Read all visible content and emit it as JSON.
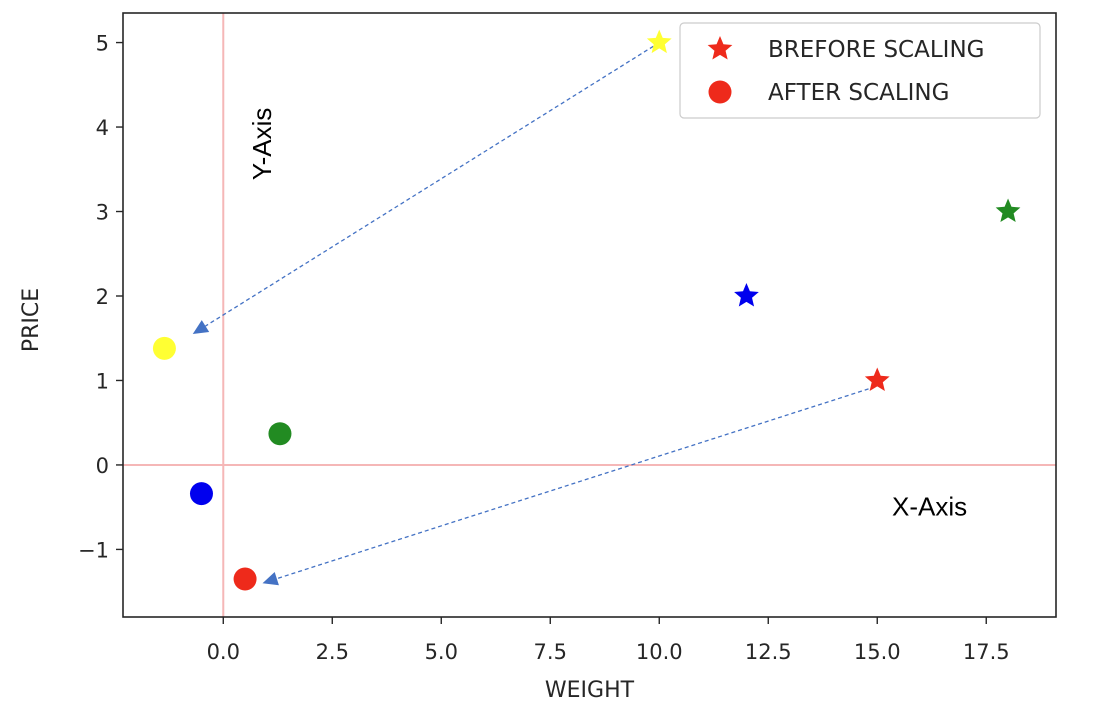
{
  "chart_data": {
    "type": "scatter",
    "title": "",
    "xlabel": "WEIGHT",
    "ylabel": "PRICE",
    "xlim": [
      -2.3,
      19.1
    ],
    "ylim": [
      -1.8,
      5.35
    ],
    "xticks": [
      {
        "value": 0.0,
        "label": "0.0"
      },
      {
        "value": 2.5,
        "label": "2.5"
      },
      {
        "value": 5.0,
        "label": "5.0"
      },
      {
        "value": 7.5,
        "label": "7.5"
      },
      {
        "value": 10.0,
        "label": "10.0"
      },
      {
        "value": 12.5,
        "label": "12.5"
      },
      {
        "value": 15.0,
        "label": "15.0"
      },
      {
        "value": 17.5,
        "label": "17.5"
      }
    ],
    "yticks": [
      {
        "value": -1,
        "label": "−1"
      },
      {
        "value": 0,
        "label": "0"
      },
      {
        "value": 1,
        "label": "1"
      },
      {
        "value": 2,
        "label": "2"
      },
      {
        "value": 3,
        "label": "3"
      },
      {
        "value": 4,
        "label": "4"
      },
      {
        "value": 5,
        "label": "5"
      }
    ],
    "grid": false,
    "reference_lines": {
      "color": "#f5b7b7",
      "x": 0,
      "y": 0
    },
    "series": [
      {
        "name": "BREFORE SCALING",
        "marker": "star",
        "points": [
          {
            "x": 10,
            "y": 5,
            "color": "#ffff33"
          },
          {
            "x": 18,
            "y": 3,
            "color": "#228b22"
          },
          {
            "x": 12,
            "y": 2,
            "color": "#0000ee"
          },
          {
            "x": 15,
            "y": 1,
            "color": "#ee2a1b"
          }
        ]
      },
      {
        "name": "AFTER SCALING",
        "marker": "circle",
        "points": [
          {
            "x": -1.35,
            "y": 1.38,
            "color": "#ffff33"
          },
          {
            "x": 1.3,
            "y": 0.37,
            "color": "#228b22"
          },
          {
            "x": -0.5,
            "y": -0.34,
            "color": "#0000ee"
          },
          {
            "x": 0.5,
            "y": -1.35,
            "color": "#ee2a1b"
          }
        ]
      }
    ],
    "legend": {
      "placement": "top-right",
      "entries": [
        {
          "label": "BREFORE SCALING",
          "marker": "star",
          "color": "#ee2a1b"
        },
        {
          "label": "AFTER SCALING",
          "marker": "circle",
          "color": "#ee2a1b"
        }
      ]
    },
    "annotations": [
      {
        "text": "Y-Axis",
        "x": 1.1,
        "y": 3.8,
        "rotation": -90
      },
      {
        "text": "X-Axis",
        "x": 16.2,
        "y": -0.6,
        "rotation": 0
      }
    ],
    "arrows": [
      {
        "from": [
          10,
          5
        ],
        "to": [
          -0.7,
          1.55
        ],
        "color": "#4472c4",
        "style": "dashed"
      },
      {
        "from": [
          14.8,
          0.9
        ],
        "to": [
          0.9,
          -1.4
        ],
        "color": "#4472c4",
        "style": "dashed"
      }
    ]
  }
}
